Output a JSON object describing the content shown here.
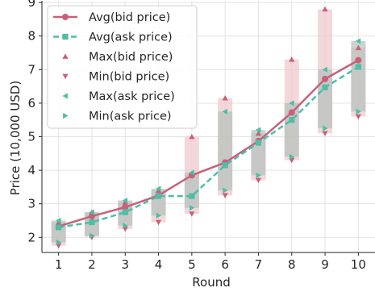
{
  "chart_data": {
    "type": "line",
    "xlabel": "Round",
    "ylabel": "Price (10,000 USD)",
    "xlim": [
      0.5,
      10.5
    ],
    "ylim": [
      1.55,
      9.05
    ],
    "x_ticks": [
      1,
      2,
      3,
      4,
      5,
      6,
      7,
      8,
      9,
      10
    ],
    "y_ticks": [
      2,
      3,
      4,
      5,
      6,
      7,
      8,
      9
    ],
    "grid": true,
    "legend_position": "top-left",
    "colors": {
      "bid": "#c9607a",
      "ask": "#4cbfa6",
      "bid_band": "#f0c9cf",
      "ask_band": "#b3c2bd"
    },
    "x": [
      1,
      2,
      3,
      4,
      5,
      6,
      7,
      8,
      9,
      10
    ],
    "series": [
      {
        "name": "Avg(bid price)",
        "key": "avg_bid",
        "values": [
          2.33,
          2.63,
          2.9,
          3.25,
          3.85,
          4.23,
          4.87,
          5.72,
          6.72,
          7.28
        ]
      },
      {
        "name": "Avg(ask price)",
        "key": "avg_ask",
        "values": [
          2.3,
          2.45,
          2.75,
          3.23,
          3.23,
          4.15,
          4.82,
          5.5,
          6.47,
          7.08
        ]
      },
      {
        "name": "Max(bid price)",
        "key": "max_bid",
        "values": [
          2.45,
          2.75,
          3.05,
          3.4,
          5.0,
          6.15,
          5.1,
          7.3,
          8.8,
          7.65
        ]
      },
      {
        "name": "Min(bid price)",
        "key": "min_bid",
        "values": [
          1.75,
          2.0,
          2.25,
          2.45,
          2.7,
          3.25,
          3.7,
          4.3,
          5.1,
          5.6
        ]
      },
      {
        "name": "Max(ask price)",
        "key": "max_ask",
        "values": [
          2.5,
          2.75,
          3.1,
          3.45,
          3.93,
          5.75,
          5.2,
          6.0,
          7.0,
          7.85
        ]
      },
      {
        "name": "Min(ask price)",
        "key": "min_ask",
        "values": [
          1.85,
          2.05,
          2.35,
          2.65,
          2.88,
          3.4,
          3.85,
          4.4,
          5.25,
          5.75
        ]
      }
    ]
  }
}
